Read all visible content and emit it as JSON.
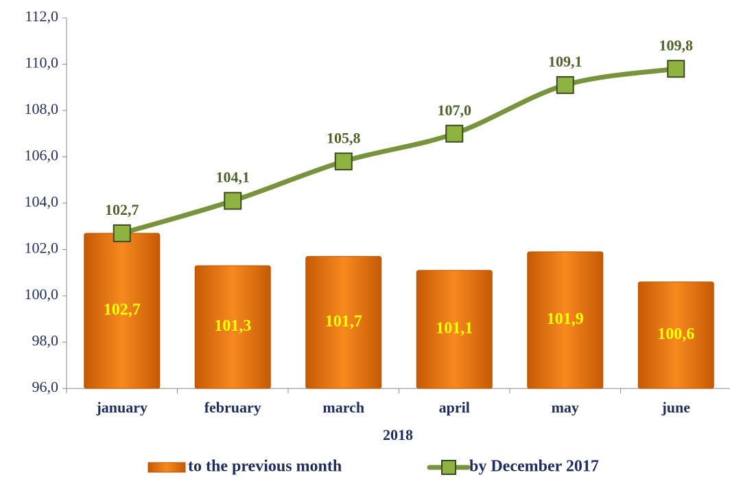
{
  "chart_data": {
    "type": "bar",
    "categories": [
      "january",
      "february",
      "march",
      "april",
      "may",
      "june"
    ],
    "x_label": "2018",
    "series": [
      {
        "name": "to the previous month",
        "type": "bar",
        "color": "#e8700e",
        "label_color": "#ffff00",
        "values": [
          102.7,
          101.3,
          101.7,
          101.1,
          101.9,
          100.6
        ],
        "value_labels": [
          "102,7",
          "101,3",
          "101,7",
          "101,1",
          "101,9",
          "100,6"
        ]
      },
      {
        "name": "by December 2017",
        "type": "line",
        "color": "#77933c",
        "marker_color": "#8fb341",
        "label_color": "#4f6228",
        "values": [
          102.7,
          104.1,
          105.8,
          107.0,
          109.1,
          109.8
        ],
        "value_labels": [
          "102,7",
          "104,1",
          "105,8",
          "107,0",
          "109,1",
          "109,8"
        ]
      }
    ],
    "ylim": [
      96,
      112
    ],
    "yticks": [
      {
        "value": 96,
        "label": "96,0"
      },
      {
        "value": 98,
        "label": "98,0"
      },
      {
        "value": 100,
        "label": "100,0"
      },
      {
        "value": 102,
        "label": "102,0"
      },
      {
        "value": 104,
        "label": "104,0"
      },
      {
        "value": 106,
        "label": "106,0"
      },
      {
        "value": 108,
        "label": "108,0"
      },
      {
        "value": 110,
        "label": "110,0"
      },
      {
        "value": 112,
        "label": "112,0"
      }
    ],
    "legend": "bottom"
  }
}
